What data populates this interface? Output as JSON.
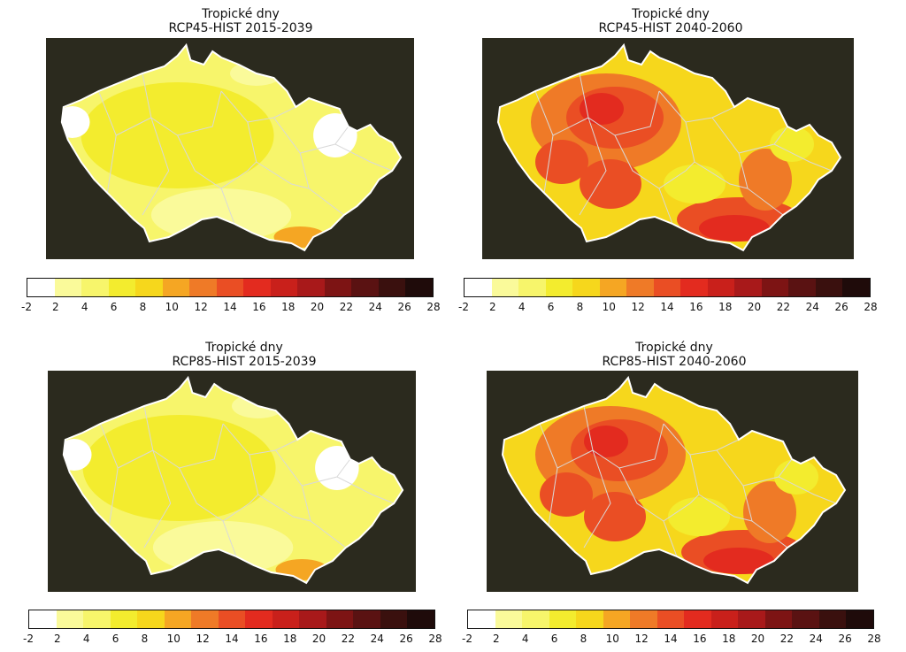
{
  "panels": [
    {
      "title_line1": "Tropické dny",
      "title_line2": "RCP45-HIST 2015-2039",
      "scenario": "RCP45",
      "period": "2015-2039",
      "intensity": "low"
    },
    {
      "title_line1": "Tropické dny",
      "title_line2": "RCP45-HIST 2040-2060",
      "scenario": "RCP45",
      "period": "2040-2060",
      "intensity": "high"
    },
    {
      "title_line1": "Tropické dny",
      "title_line2": "RCP85-HIST 2015-2039",
      "scenario": "RCP85",
      "period": "2015-2039",
      "intensity": "low"
    },
    {
      "title_line1": "Tropické dny",
      "title_line2": "RCP85-HIST 2040-2060",
      "scenario": "RCP85",
      "period": "2040-2060",
      "intensity": "high"
    }
  ],
  "colorbar": {
    "ticks": [
      "-2",
      "2",
      "4",
      "6",
      "8",
      "10",
      "12",
      "14",
      "16",
      "18",
      "20",
      "22",
      "24",
      "26",
      "28"
    ],
    "colors": [
      "#ffffff",
      "#fafa9a",
      "#f7f56b",
      "#f3ec2e",
      "#f6d71c",
      "#f5a623",
      "#ef7a27",
      "#ea4e24",
      "#e32b1f",
      "#c9201b",
      "#a8191a",
      "#7d1414",
      "#5a1212",
      "#3a100e",
      "#1f0b0a"
    ]
  },
  "map_style": {
    "background": "#2b2a1e",
    "border_color": "#ffffff",
    "region_line_color": "#d9d9d9"
  }
}
